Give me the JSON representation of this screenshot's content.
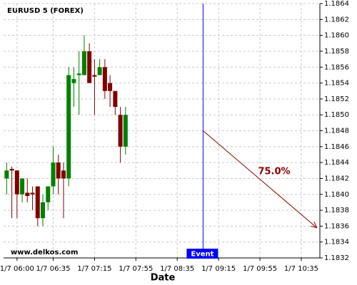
{
  "chart_data": {
    "type": "candlestick",
    "title": "EURUSD 5 (FOREX)",
    "x_label": "Date",
    "watermark": "www.delkos.com",
    "up_color": "#008000",
    "down_color": "#800000",
    "grid": true,
    "x": [
      "1/7 05:50",
      "1/7 05:55",
      "1/7 06:00",
      "1/7 06:05",
      "1/7 06:10",
      "1/7 06:15",
      "1/7 06:20",
      "1/7 06:25",
      "1/7 06:30",
      "1/7 06:35",
      "1/7 06:40",
      "1/7 06:45",
      "1/7 06:50",
      "1/7 06:55",
      "1/7 07:00",
      "1/7 07:05",
      "1/7 07:10",
      "1/7 07:15",
      "1/7 07:20",
      "1/7 07:25",
      "1/7 07:30",
      "1/7 07:35",
      "1/7 07:40",
      "1/7 07:45"
    ],
    "open": [
      1.1842,
      1.18432,
      1.1843,
      1.184,
      1.18402,
      1.18402,
      1.1841,
      1.1837,
      1.1839,
      1.1841,
      1.1844,
      1.1843,
      1.1842,
      1.1854,
      1.1855,
      1.1855,
      1.1858,
      1.1855,
      1.1855,
      1.1856,
      1.1854,
      1.1853,
      1.185,
      1.1846
    ],
    "high": [
      1.1844,
      1.18435,
      1.1843,
      1.1842,
      1.1842,
      1.1841,
      1.1841,
      1.184,
      1.1841,
      1.1846,
      1.1845,
      1.1844,
      1.1856,
      1.1856,
      1.1858,
      1.186,
      1.1859,
      1.1857,
      1.1857,
      1.1857,
      1.1855,
      1.1853,
      1.1851,
      1.1851
    ],
    "low": [
      1.184,
      1.1837,
      1.1837,
      1.1839,
      1.1839,
      1.1838,
      1.1836,
      1.1836,
      1.1838,
      1.184,
      1.184,
      1.1837,
      1.1841,
      1.1851,
      1.185,
      1.1855,
      1.1854,
      1.185,
      1.1855,
      1.1852,
      1.1851,
      1.185,
      1.1844,
      1.1845
    ],
    "close": [
      1.1843,
      1.1843,
      1.184,
      1.1842,
      1.18398,
      1.184,
      1.1837,
      1.1839,
      1.1841,
      1.1844,
      1.1842,
      1.1842,
      1.1855,
      1.18545,
      1.18552,
      1.1858,
      1.1854,
      1.18548,
      1.1856,
      1.1853,
      1.1853,
      1.1851,
      1.1846,
      1.185
    ],
    "xlim": [
      "1/7 05:47",
      "1/7 10:53"
    ],
    "xticks": [
      "1/7 06:00",
      "1/7 06:35",
      "1/7 07:15",
      "1/7 07:55",
      "1/7 08:35",
      "1/7 09:15",
      "1/7 09:55",
      "1/7 10:35"
    ],
    "ylim": [
      1.1832,
      1.1864
    ],
    "yticks": [
      1.1832,
      1.1834,
      1.1836,
      1.1838,
      {
        "value": 1.184,
        "label": "1.1840"
      },
      1.1842,
      1.1844,
      1.1846,
      1.1848,
      {
        "value": 1.185,
        "label": "1.1850"
      },
      1.1852,
      1.1854,
      1.1856,
      1.1858,
      {
        "value": 1.186,
        "label": "1.1860"
      },
      1.1862,
      1.1864
    ],
    "event": {
      "label": "Event",
      "x": "1/7 09:00",
      "color": "#0000ff"
    },
    "forecast": {
      "label": "75.0%",
      "x": [
        "1/7 09:00",
        "1/7 10:50"
      ],
      "values": [
        1.1848,
        1.18358
      ],
      "color": "#8b0000"
    }
  }
}
